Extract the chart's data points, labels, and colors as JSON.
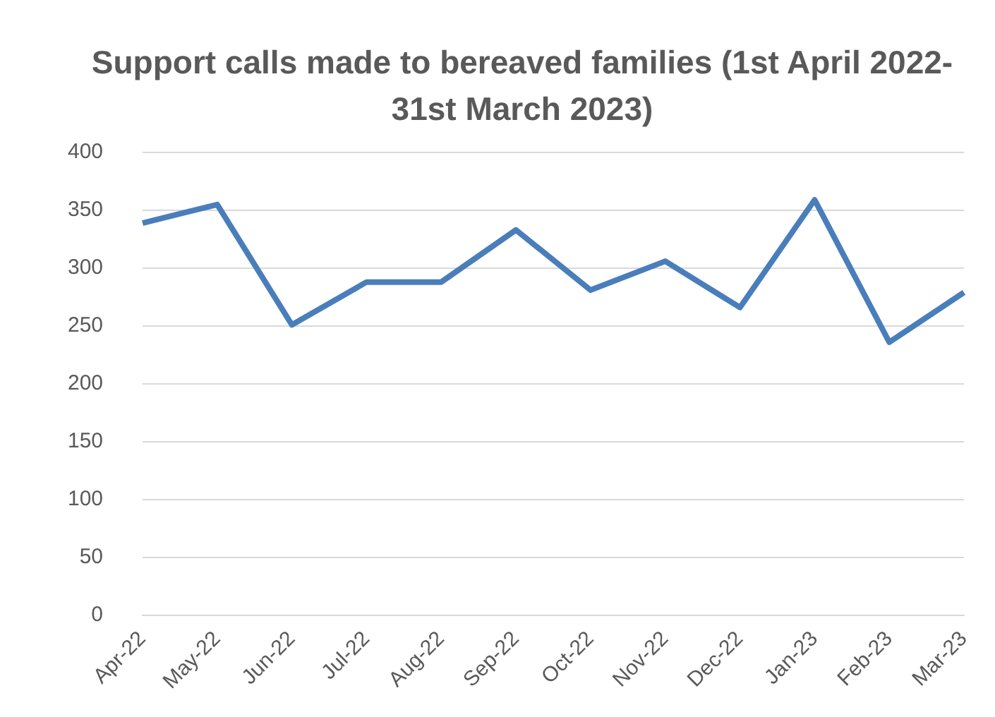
{
  "chart_data": {
    "type": "line",
    "title": "Support calls made to bereaved families (1st April 2022-31st March 2023)",
    "categories": [
      "Apr-22",
      "May-22",
      "Jun-22",
      "Jul-22",
      "Aug-22",
      "Sep-22",
      "Oct-22",
      "Nov-22",
      "Dec-22",
      "Jan-23",
      "Feb-23",
      "Mar-23"
    ],
    "series": [
      {
        "color": "#4a7ebb",
        "values": [
          339,
          355,
          251,
          288,
          288,
          333,
          281,
          306,
          266,
          359,
          236,
          279
        ]
      }
    ],
    "ylim": [
      0,
      400
    ],
    "yticks": [
      0,
      50,
      100,
      150,
      200,
      250,
      300,
      350,
      400
    ],
    "grid": "y",
    "legend": false,
    "marker": "none",
    "line_style": "solid"
  }
}
